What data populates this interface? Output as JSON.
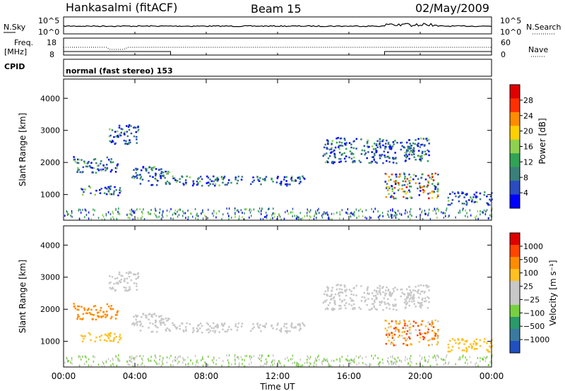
{
  "header": {
    "station": "Hankasalmi (fitACF)",
    "beam": "Beam 15",
    "date": "02/May/2009"
  },
  "panels": {
    "nsky": {
      "label": "N.Sky",
      "tick_top": "10^5",
      "tick_bottom": "10^0",
      "right_label": "N.Search",
      "right_tick_top": "10^5",
      "right_tick_bottom": "10^0"
    },
    "freq": {
      "label": "Freq.",
      "unit": "[MHz]",
      "tick_top": "18",
      "tick_bottom": "8",
      "right_label": "Nave",
      "right_tick_top": "60",
      "right_tick_bottom": "0"
    },
    "cpid": {
      "label": "CPID",
      "text": "normal (fast stereo) 153"
    }
  },
  "colors": {
    "power_scale": [
      "#0000ff",
      "#2a4cc0",
      "#3a7f7a",
      "#31a354",
      "#8fd14f",
      "#ffd000",
      "#ff8c00",
      "#ff3000",
      "#e00000"
    ],
    "velocity_scale": [
      "#e00000",
      "#ff4500",
      "#ff8c00",
      "#ffc020",
      "#c8c8c8",
      "#c8c8c8",
      "#78d040",
      "#2a9a6a",
      "#3a7aa0",
      "#2050c0"
    ]
  },
  "chart_data": [
    {
      "type": "heatmap",
      "name": "power",
      "ylabel": "Slant Range [km]",
      "yticks": [
        "1000",
        "2000",
        "3000",
        "4000"
      ],
      "ylim": [
        200,
        4600
      ],
      "xlim_hours": [
        0,
        24
      ],
      "colorbar_label": "Power [dB]",
      "colorbar_ticks": [
        "4",
        "8",
        "12",
        "16",
        "20",
        "24",
        "28"
      ],
      "colorbar_range": [
        0,
        30
      ],
      "echo_regions": [
        {
          "t0": 0.9,
          "t1": 3.2,
          "r0": 1000,
          "r1": 1300
        },
        {
          "t0": 0.5,
          "t1": 3.0,
          "r0": 1700,
          "r1": 2200
        },
        {
          "t0": 2.5,
          "t1": 4.2,
          "r0": 2600,
          "r1": 3200
        },
        {
          "t0": 3.8,
          "t1": 6.0,
          "r0": 1300,
          "r1": 1900
        },
        {
          "t0": 6.0,
          "t1": 13.5,
          "r0": 1300,
          "r1": 1600
        },
        {
          "t0": 14.5,
          "t1": 20.5,
          "r0": 2000,
          "r1": 2800
        },
        {
          "t0": 18.0,
          "t1": 21.0,
          "r0": 900,
          "r1": 1700
        },
        {
          "t0": 21.5,
          "t1": 24.0,
          "r0": 700,
          "r1": 1100
        }
      ]
    },
    {
      "type": "heatmap",
      "name": "velocity",
      "ylabel": "Slant Range [km]",
      "yticks": [
        "1000",
        "2000",
        "3000",
        "4000"
      ],
      "ylim": [
        200,
        4600
      ],
      "xlim_hours": [
        0,
        24
      ],
      "colorbar_label": "Velocity [m s⁻¹]",
      "colorbar_ticks": [
        "1000",
        "500",
        "100",
        "25",
        "−25",
        "−100",
        "−500",
        "−1000"
      ],
      "xticks": [
        "00:00",
        "04:00",
        "08:00",
        "12:00",
        "16:00",
        "20:00",
        "00:00"
      ],
      "xlabel": "Time UT"
    }
  ]
}
